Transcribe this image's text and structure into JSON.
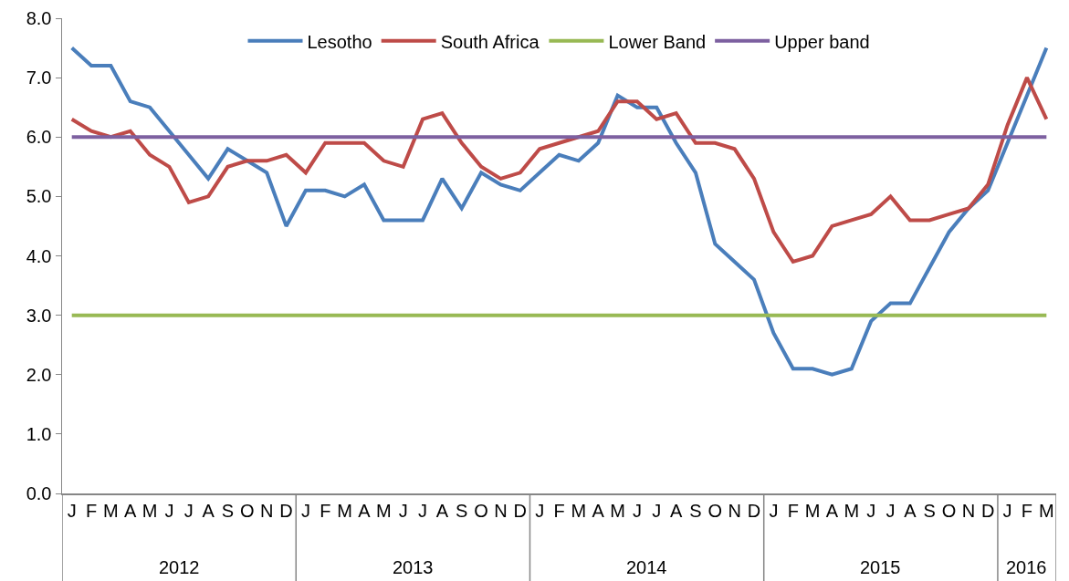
{
  "chart_data": {
    "type": "line",
    "categories": [
      "J",
      "F",
      "M",
      "A",
      "M",
      "J",
      "J",
      "A",
      "S",
      "O",
      "N",
      "D",
      "J",
      "F",
      "M",
      "A",
      "M",
      "J",
      "J",
      "A",
      "S",
      "O",
      "N",
      "D",
      "J",
      "F",
      "M",
      "A",
      "M",
      "J",
      "J",
      "A",
      "S",
      "O",
      "N",
      "D",
      "J",
      "F",
      "M",
      "A",
      "M",
      "J",
      "J",
      "A",
      "S",
      "O",
      "N",
      "D",
      "J",
      "F",
      "M"
    ],
    "annotations": [
      "2012",
      "2013",
      "2014",
      "2015",
      "2016"
    ],
    "series": [
      {
        "name": "Lesotho",
        "color": "#4a7ebb",
        "values": [
          7.5,
          7.2,
          7.2,
          6.6,
          6.5,
          6.1,
          5.7,
          5.3,
          5.8,
          5.6,
          5.4,
          4.5,
          5.1,
          5.1,
          5.0,
          5.2,
          4.6,
          4.6,
          4.6,
          5.3,
          4.8,
          5.4,
          5.2,
          5.1,
          5.4,
          5.7,
          5.6,
          5.9,
          6.7,
          6.5,
          6.5,
          5.9,
          5.4,
          4.2,
          3.9,
          3.6,
          2.7,
          2.1,
          2.1,
          2.0,
          2.1,
          2.9,
          3.2,
          3.2,
          3.8,
          4.4,
          4.8,
          5.1,
          5.9,
          6.7,
          7.5
        ]
      },
      {
        "name": "South Africa",
        "color": "#be4b48",
        "values": [
          6.3,
          6.1,
          6.0,
          6.1,
          5.7,
          5.5,
          4.9,
          5.0,
          5.5,
          5.6,
          5.6,
          5.7,
          5.4,
          5.9,
          5.9,
          5.9,
          5.6,
          5.5,
          6.3,
          6.4,
          5.9,
          5.5,
          5.3,
          5.4,
          5.8,
          5.9,
          6.0,
          6.1,
          6.6,
          6.6,
          6.3,
          6.4,
          5.9,
          5.9,
          5.8,
          5.3,
          4.4,
          3.9,
          4.0,
          4.5,
          4.6,
          4.7,
          5.0,
          4.6,
          4.6,
          4.7,
          4.8,
          5.2,
          6.2,
          7.0,
          6.3
        ]
      },
      {
        "name": "Lower Band",
        "color": "#98b954",
        "values": [
          3,
          3,
          3,
          3,
          3,
          3,
          3,
          3,
          3,
          3,
          3,
          3,
          3,
          3,
          3,
          3,
          3,
          3,
          3,
          3,
          3,
          3,
          3,
          3,
          3,
          3,
          3,
          3,
          3,
          3,
          3,
          3,
          3,
          3,
          3,
          3,
          3,
          3,
          3,
          3,
          3,
          3,
          3,
          3,
          3,
          3,
          3,
          3,
          3,
          3,
          3
        ]
      },
      {
        "name": "Upper band",
        "color": "#7d60a0",
        "values": [
          6,
          6,
          6,
          6,
          6,
          6,
          6,
          6,
          6,
          6,
          6,
          6,
          6,
          6,
          6,
          6,
          6,
          6,
          6,
          6,
          6,
          6,
          6,
          6,
          6,
          6,
          6,
          6,
          6,
          6,
          6,
          6,
          6,
          6,
          6,
          6,
          6,
          6,
          6,
          6,
          6,
          6,
          6,
          6,
          6,
          6,
          6,
          6,
          6,
          6,
          6
        ]
      }
    ],
    "ylim": [
      0,
      8
    ],
    "yticks": [
      {
        "value": 0,
        "label": "0.0"
      },
      {
        "value": 1,
        "label": "1.0"
      },
      {
        "value": 2,
        "label": "2.0"
      },
      {
        "value": 3,
        "label": "3.0"
      },
      {
        "value": 4,
        "label": "4.0"
      },
      {
        "value": 5,
        "label": "5.0"
      },
      {
        "value": 6,
        "label": "6.0"
      },
      {
        "value": 7,
        "label": "7.0"
      },
      {
        "value": 8,
        "label": "8.0"
      }
    ],
    "grid": false,
    "legend": "top",
    "marker": "none",
    "line_style": "solid"
  }
}
